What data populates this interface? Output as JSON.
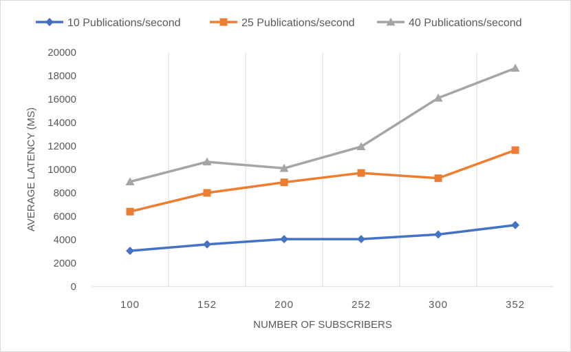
{
  "chart_data": {
    "type": "line",
    "title": "",
    "xlabel": "NUMBER OF SUBSCRIBERS",
    "ylabel": "AVERAGE LATENCY (MS)",
    "categories": [
      "100",
      "152",
      "200",
      "252",
      "300",
      "352"
    ],
    "ylim": [
      0,
      20000
    ],
    "yticks": [
      0,
      2000,
      4000,
      6000,
      8000,
      10000,
      12000,
      14000,
      16000,
      18000,
      20000
    ],
    "grid": "vertical",
    "legend_position": "top",
    "series": [
      {
        "name": "10 Publications/second",
        "color": "#4472c4",
        "marker": "diamond",
        "values": [
          3050,
          3600,
          4050,
          4050,
          4450,
          5250
        ]
      },
      {
        "name": "25 Publications/second",
        "color": "#ed7d31",
        "marker": "square",
        "values": [
          6400,
          8000,
          8900,
          9700,
          9250,
          11650
        ]
      },
      {
        "name": "40 Publications/second",
        "color": "#a5a5a5",
        "marker": "triangle",
        "values": [
          8950,
          10650,
          10100,
          11950,
          16100,
          18650
        ]
      }
    ]
  }
}
